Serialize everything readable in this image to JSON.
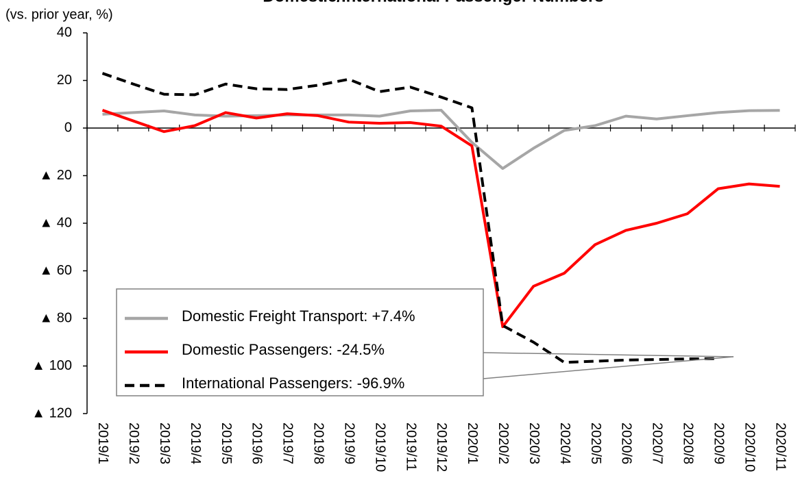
{
  "chart_data": {
    "type": "line",
    "title": "・Domestic/International Passenger Numbers",
    "y_label": "(vs. prior year, %)",
    "categories": [
      "2019/1",
      "2019/2",
      "2019/3",
      "2019/4",
      "2019/5",
      "2019/6",
      "2019/7",
      "2019/8",
      "2019/9",
      "2019/10",
      "2019/11",
      "2019/12",
      "2020/1",
      "2020/2",
      "2020/3",
      "2020/4",
      "2020/5",
      "2020/6",
      "2020/7",
      "2020/8",
      "2020/9",
      "2020/10",
      "2020/11"
    ],
    "series": [
      {
        "name": "Domestic Freight Transport: +7.4%",
        "color": "#a6a6a6",
        "dash": "solid",
        "values": [
          5.8,
          6.5,
          7.2,
          5.5,
          5,
          5.2,
          5.5,
          5.5,
          5.5,
          5,
          7.2,
          7.5,
          -6,
          -17,
          -8.5,
          -1,
          1,
          5,
          3.8,
          5.2,
          6.5,
          7.3,
          7.4
        ]
      },
      {
        "name": "Domestic Passengers: -24.5%",
        "color": "#ff0000",
        "dash": "solid",
        "values": [
          7.5,
          3,
          -1.5,
          1,
          6.5,
          4.2,
          6,
          5.2,
          2.5,
          2,
          2.3,
          0.8,
          -7.5,
          -83.5,
          -66.5,
          -61,
          -49,
          -43,
          -40,
          -36,
          -25.5,
          -23.5,
          -24.5
        ]
      },
      {
        "name": "International Passengers: -96.9%",
        "color": "#000000",
        "dash": "dashed",
        "values": [
          23,
          18.5,
          14.2,
          14,
          18.5,
          16.5,
          16.2,
          18,
          20.5,
          15.3,
          17.2,
          13,
          8.5,
          -83,
          -90,
          -98.5,
          -98,
          -97.5,
          -97.3,
          -97,
          -96.9,
          null,
          null
        ]
      }
    ],
    "ylim": [
      -120,
      40
    ],
    "yticks": [
      40,
      20,
      0,
      {
        "value": -20,
        "label": "▲ 20"
      },
      {
        "value": -40,
        "label": "▲ 40"
      },
      {
        "value": -60,
        "label": "▲ 60"
      },
      {
        "value": -80,
        "label": "▲ 80"
      },
      {
        "value": -100,
        "label": "▲ 100"
      },
      {
        "value": -120,
        "label": "▲ 120"
      }
    ]
  }
}
